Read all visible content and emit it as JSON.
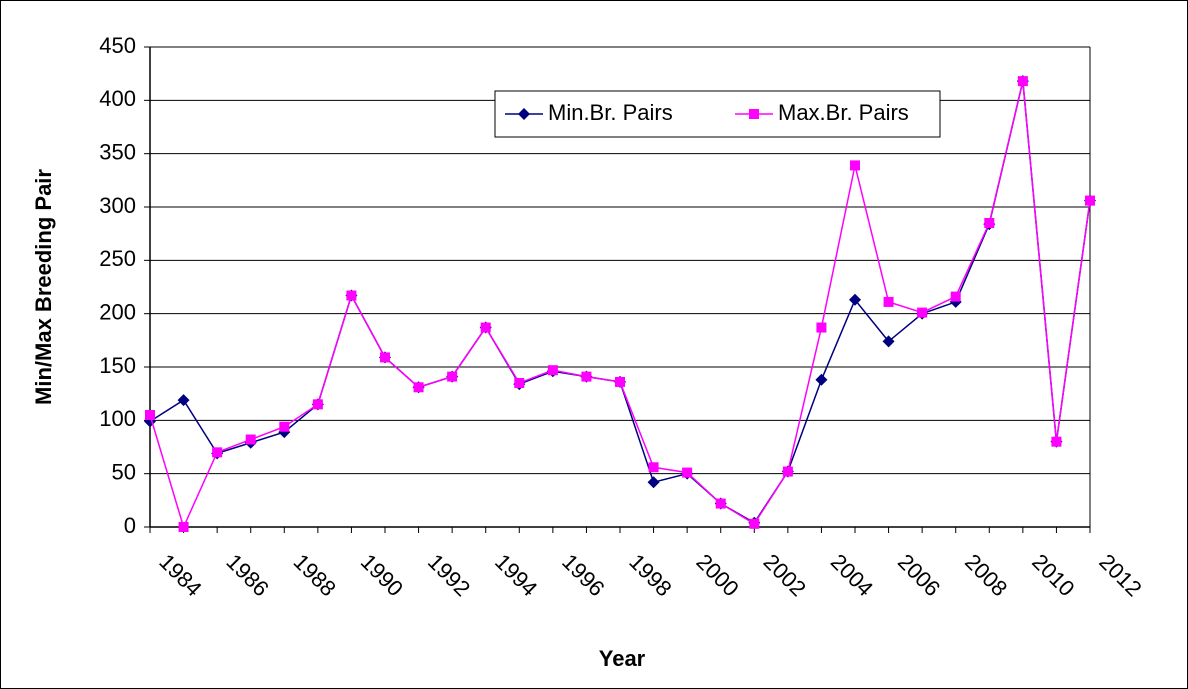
{
  "chart_data": {
    "type": "line",
    "x_label": "Year",
    "y_label": "Min/Max Breeding Pair",
    "categories": [
      "1984",
      null,
      "1986",
      null,
      "1988",
      null,
      "1990",
      null,
      "1992",
      null,
      "1994",
      null,
      "1996",
      null,
      "1998",
      null,
      "2000",
      null,
      "2002",
      null,
      "2004",
      null,
      "2006",
      null,
      "2008",
      null,
      "2010",
      null,
      "2012"
    ],
    "series": [
      {
        "name": "Min.Br. Pairs",
        "color": "#000080",
        "marker": "diamond",
        "values": [
          99,
          119,
          69,
          79,
          89,
          115,
          217,
          159,
          131,
          141,
          187,
          134,
          146,
          141,
          136,
          42,
          50,
          22,
          4,
          52,
          138,
          213,
          174,
          200,
          211,
          284,
          418,
          80,
          306
        ]
      },
      {
        "name": "Max.Br. Pairs",
        "color": "#ff00ff",
        "marker": "square",
        "values": [
          105,
          0,
          70,
          82,
          94,
          115,
          217,
          159,
          131,
          141,
          187,
          135,
          147,
          141,
          136,
          56,
          51,
          22,
          3,
          52,
          187,
          339,
          211,
          201,
          216,
          285,
          418,
          80,
          306
        ]
      }
    ],
    "ylim": [
      0,
      450
    ],
    "yticks": [
      0,
      50,
      100,
      150,
      200,
      250,
      300,
      350,
      400,
      450
    ],
    "grid": true,
    "legend": "top"
  }
}
